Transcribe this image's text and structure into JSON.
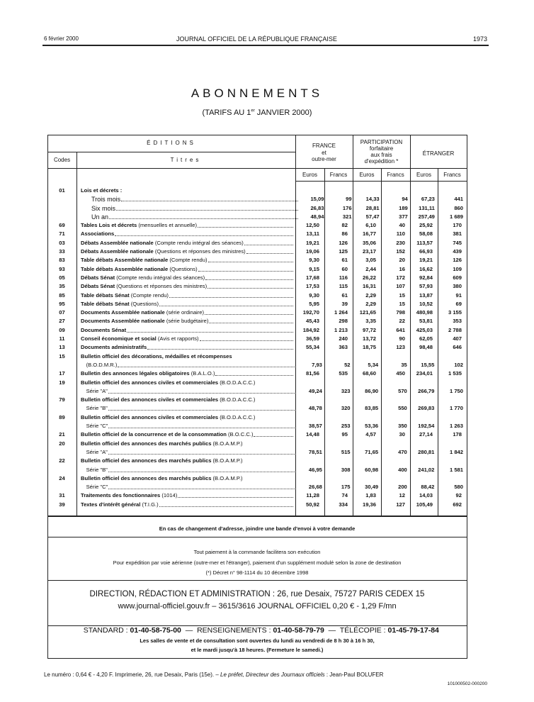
{
  "header": {
    "date": "6 février 2000",
    "journal": "JOURNAL OFFICIEL DE LA RÉPUBLIQUE FRANÇAISE",
    "page": "1973"
  },
  "title": "ABONNEMENTS",
  "subtitle": {
    "pre": "(TARIFS AU 1",
    "sup": "er",
    "post": " JANVIER 2000)"
  },
  "table": {
    "editions": "ÉDITIONS",
    "codes": "Codes",
    "titres": "Titres",
    "groups": [
      {
        "lines": [
          "FRANCE",
          "et",
          "outre-mer"
        ]
      },
      {
        "lines": [
          "PARTICIPATION",
          "forfaitaire",
          "aux frais",
          "d'expédition *"
        ]
      },
      {
        "lines": [
          "ÉTRANGER"
        ]
      }
    ],
    "units": [
      "Euros",
      "Francs",
      "Euros",
      "Francs",
      "Euros",
      "Francs"
    ],
    "rows": [
      {
        "code": "01",
        "bold": "Lois et décrets :",
        "rest": "",
        "subrows": [
          {
            "label": "Trois mois",
            "values": [
              "15,09",
              "99",
              "14,33",
              "94",
              "67,23",
              "441"
            ]
          },
          {
            "label": "Six mois",
            "values": [
              "26,83",
              "176",
              "28,81",
              "189",
              "131,11",
              "860"
            ]
          },
          {
            "label": "Un an",
            "values": [
              "48,94",
              "321",
              "57,47",
              "377",
              "257,49",
              "1 689"
            ]
          }
        ]
      },
      {
        "code": "69",
        "bold": "Tables Lois et décrets",
        "rest": " (mensuelles et annuelle)",
        "values": [
          "12,50",
          "82",
          "6,10",
          "40",
          "25,92",
          "170"
        ]
      },
      {
        "code": "71",
        "bold": "Associations",
        "rest": "",
        "values": [
          "13,11",
          "86",
          "16,77",
          "110",
          "58,08",
          "381"
        ]
      },
      {
        "code": "03",
        "bold": "Débats Assemblée nationale",
        "rest": " (Compte rendu intégral des séances)",
        "values": [
          "19,21",
          "126",
          "35,06",
          "230",
          "113,57",
          "745"
        ]
      },
      {
        "code": "33",
        "bold": "Débats Assemblée nationale",
        "rest": " (Questions et réponses des ministres)",
        "values": [
          "19,06",
          "125",
          "23,17",
          "152",
          "66,93",
          "439"
        ]
      },
      {
        "code": "83",
        "bold": "Table débats Assemblée nationale",
        "rest": " (Compte rendu)",
        "values": [
          "9,30",
          "61",
          "3,05",
          "20",
          "19,21",
          "126"
        ]
      },
      {
        "code": "93",
        "bold": "Table débats Assemblée nationale",
        "rest": " (Questions)",
        "values": [
          "9,15",
          "60",
          "2,44",
          "16",
          "16,62",
          "109"
        ]
      },
      {
        "code": "05",
        "bold": "Débats Sénat",
        "rest": " (Compte rendu intégral des séances)",
        "values": [
          "17,68",
          "116",
          "26,22",
          "172",
          "92,84",
          "609"
        ]
      },
      {
        "code": "35",
        "bold": "Débats Sénat",
        "rest": " (Questions et réponses des ministres)",
        "values": [
          "17,53",
          "115",
          "16,31",
          "107",
          "57,93",
          "380"
        ]
      },
      {
        "code": "85",
        "bold": "Table débats Sénat",
        "rest": " (Compte rendu)",
        "values": [
          "9,30",
          "61",
          "2,29",
          "15",
          "13,87",
          "91"
        ]
      },
      {
        "code": "95",
        "bold": "Table débats Sénat",
        "rest": " (Questions)",
        "values": [
          "5,95",
          "39",
          "2,29",
          "15",
          "10,52",
          "69"
        ]
      },
      {
        "code": "07",
        "bold": "Documents Assemblée nationale",
        "rest": " (série ordinaire)",
        "values": [
          "192,70",
          "1 264",
          "121,65",
          "798",
          "480,98",
          "3 155"
        ]
      },
      {
        "code": "27",
        "bold": "Documents Assemblée nationale",
        "rest": " (série budgétaire)",
        "values": [
          "45,43",
          "298",
          "3,35",
          "22",
          "53,81",
          "353"
        ]
      },
      {
        "code": "09",
        "bold": "Documents Sénat",
        "rest": "",
        "values": [
          "184,92",
          "1 213",
          "97,72",
          "641",
          "425,03",
          "2 788"
        ]
      },
      {
        "code": "11",
        "bold": "Conseil économique et social",
        "rest": " (Avis et rapports)",
        "values": [
          "36,59",
          "240",
          "13,72",
          "90",
          "62,05",
          "407"
        ]
      },
      {
        "code": "13",
        "bold": "Documents administratifs",
        "rest": "",
        "values": [
          "55,34",
          "363",
          "18,75",
          "123",
          "98,48",
          "646"
        ]
      },
      {
        "code": "15",
        "bold": "Bulletin officiel des décorations, médailles et récompenses",
        "rest": "",
        "sub": "(B.O.D.M.R.)",
        "values": [
          "7,93",
          "52",
          "5,34",
          "35",
          "15,55",
          "102"
        ]
      },
      {
        "code": "17",
        "bold": "Bulletin des annonces légales obligatoires",
        "rest": " (B.A.L.O.)",
        "values": [
          "81,56",
          "535",
          "68,60",
          "450",
          "234,01",
          "1 535"
        ]
      },
      {
        "code": "19",
        "bold": "Bulletin officiel des annonces civiles et commerciales",
        "rest": " (B.O.D.A.C.C.)",
        "sub": "Série \"A\"",
        "values": [
          "49,24",
          "323",
          "86,90",
          "570",
          "266,79",
          "1 750"
        ]
      },
      {
        "code": "79",
        "bold": "Bulletin officiel des annonces civiles et commerciales",
        "rest": " (B.O.D.A.C.C.)",
        "sub": "Série \"B\"",
        "values": [
          "48,78",
          "320",
          "83,85",
          "550",
          "269,83",
          "1 770"
        ]
      },
      {
        "code": "89",
        "bold": "Bulletin officiel des annonces civiles et commerciales",
        "rest": " (B.O.D.A.C.C.)",
        "sub": "Série \"C\"",
        "values": [
          "38,57",
          "253",
          "53,36",
          "350",
          "192,54",
          "1 263"
        ]
      },
      {
        "code": "21",
        "bold": "Bulletin officiel de la concurrence et de la consommation",
        "rest": " (B.O.C.C.)",
        "values": [
          "14,48",
          "95",
          "4,57",
          "30",
          "27,14",
          "178"
        ]
      },
      {
        "code": "20",
        "bold": "Bulletin officiel des annonces des marchés publics",
        "rest": " (B.O.A.M.P.)",
        "sub": "Série \"A\"",
        "values": [
          "78,51",
          "515",
          "71,65",
          "470",
          "280,81",
          "1 842"
        ]
      },
      {
        "code": "22",
        "bold": "Bulletin officiel des annonces des marchés publics",
        "rest": " (B.O.A.M.P.)",
        "sub": "Série \"B\"",
        "values": [
          "46,95",
          "308",
          "60,98",
          "400",
          "241,02",
          "1 581"
        ]
      },
      {
        "code": "24",
        "bold": "Bulletin officiel des annonces des marchés publics",
        "rest": " (B.O.A.M.P.)",
        "sub": "Série \"C\"",
        "values": [
          "26,68",
          "175",
          "30,49",
          "200",
          "88,42",
          "580"
        ]
      },
      {
        "code": "31",
        "bold": "Traitements des fonctionnaires",
        "rest": " (1014)",
        "values": [
          "11,28",
          "74",
          "1,83",
          "12",
          "14,03",
          "92"
        ]
      },
      {
        "code": "39",
        "bold": "Textes d'intérêt général",
        "rest": " (T.I.G.)",
        "values": [
          "50,92",
          "334",
          "19,36",
          "127",
          "105,49",
          "692"
        ]
      }
    ]
  },
  "notice": "En cas de changement d'adresse, joindre une bande d'envoi à votre demande",
  "payment": [
    "Tout paiement à la commande facilitera son exécution",
    "Pour expédition par voie aérienne (outre-mer et l'étranger), paiement d'un supplément modulé selon la zone de destination",
    "(*) Décret n° 98-1114 du 10 décembre 1998"
  ],
  "direction": {
    "address": "DIRECTION, RÉDACTION ET ADMINISTRATION : 26, rue Desaix, 75727 PARIS CEDEX 15",
    "web": "www.journal-officiel.gouv.fr – 3615/3616 JOURNAL OFFICIEL  0,20 € - 1,29 F/mn",
    "phones": [
      {
        "label": "STANDARD : ",
        "number": "01-40-58-75-00"
      },
      {
        "label": "  —  RENSEIGNEMENTS : ",
        "number": "01-40-58-79-79"
      },
      {
        "label": "  —  TÉLÉCOPIE : ",
        "number": "01-45-79-17-84"
      }
    ]
  },
  "hours": [
    "Les salles de vente et de consultation sont ouvertes du lundi au vendredi de 8 h 30 à 16 h 30,",
    "et le mardi jusqu'à 18 heures. (Fermeture le samedi.)"
  ],
  "footer": {
    "pre": "Le numéro : 0,64 € - 4,20 F. Imprimerie, 26, rue Desaix, Paris (15e). – ",
    "italic": "Le préfet, Directeur des Journaux officiels",
    "post": " : Jean-Paul BOLUFER",
    "ref": "101000502-000200"
  }
}
